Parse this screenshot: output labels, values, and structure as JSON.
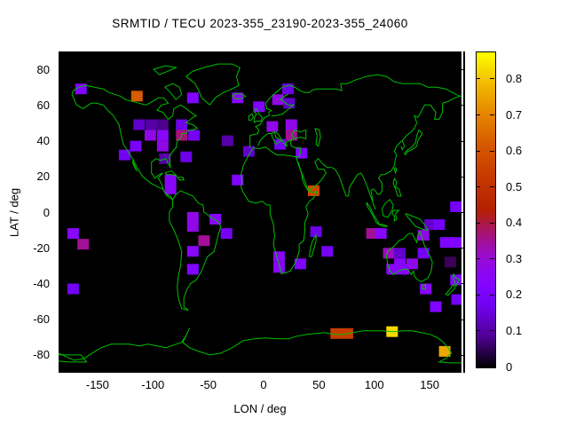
{
  "title": "SRMTID / TECU 2023-355_23190-2023-355_24060",
  "colors": {
    "background": "#ffffff",
    "map_background": "#000000",
    "coastline": "#00c000",
    "text": "#000000"
  },
  "axes": {
    "x_label": "LON / deg",
    "y_label": "LAT / deg",
    "x_tick_labels": [
      "-150",
      "-100",
      "-50",
      "0",
      "50",
      "100",
      "150"
    ],
    "x_tick_values": [
      -150,
      -100,
      -50,
      0,
      50,
      100,
      150
    ],
    "y_tick_labels": [
      "80",
      "60",
      "40",
      "20",
      "0",
      "-20",
      "-40",
      "-60",
      "-80"
    ],
    "y_tick_values": [
      80,
      60,
      40,
      20,
      0,
      -20,
      -40,
      -60,
      -80
    ],
    "x_range": [
      -180,
      180
    ],
    "y_range": [
      -90,
      90
    ]
  },
  "colorbar": {
    "tick_labels": [
      "0",
      "0.1",
      "0.2",
      "0.3",
      "0.4",
      "0.5",
      "0.6",
      "0.7",
      "0.8"
    ],
    "tick_values": [
      0,
      0.1,
      0.2,
      0.3,
      0.4,
      0.5,
      0.6,
      0.7,
      0.8
    ],
    "range": [
      0,
      0.875
    ],
    "palette": "gnuplot pm3d rgbformulae 7,5,15 (black-violet-magenta-red-orange-yellow)"
  },
  "chart_data": {
    "type": "heatmap",
    "title": "SRMTID / TECU 2023-355_23190-2023-355_24060",
    "xlabel": "LON / deg",
    "ylabel": "LAT / deg",
    "xlim": [
      -180,
      180
    ],
    "ylim": [
      -90,
      90
    ],
    "grid": false,
    "legend_position": "right-colorbar",
    "colorbar_range": [
      0,
      0.875
    ],
    "units": "TECU",
    "cell_size_deg": {
      "lon": 10,
      "lat": 6
    },
    "cells": [
      {
        "lon": -160,
        "lat": 69,
        "value": 0.22
      },
      {
        "lon": -110,
        "lat": 65,
        "value": 0.62
      },
      {
        "lon": -60,
        "lat": 64,
        "value": 0.22
      },
      {
        "lon": -20,
        "lat": 64,
        "value": 0.25
      },
      {
        "lon": -1,
        "lat": 59,
        "value": 0.22
      },
      {
        "lon": 25,
        "lat": 69,
        "value": 0.16
      },
      {
        "lon": 16,
        "lat": 63,
        "value": 0.28
      },
      {
        "lon": 26,
        "lat": 61,
        "value": 0.13
      },
      {
        "lon": -108,
        "lat": 49,
        "value": 0.13
      },
      {
        "lon": -97,
        "lat": 49,
        "value": 0.1
      },
      {
        "lon": -87,
        "lat": 49,
        "value": 0.08
      },
      {
        "lon": -70,
        "lat": 49,
        "value": 0.16
      },
      {
        "lon": -98,
        "lat": 43,
        "value": 0.28
      },
      {
        "lon": -87,
        "lat": 43,
        "value": 0.25
      },
      {
        "lon": -70,
        "lat": 43,
        "value": 0.37
      },
      {
        "lon": -59,
        "lat": 43,
        "value": 0.18
      },
      {
        "lon": -111,
        "lat": 37,
        "value": 0.2
      },
      {
        "lon": -87,
        "lat": 37,
        "value": 0.28
      },
      {
        "lon": -121,
        "lat": 32,
        "value": 0.18
      },
      {
        "lon": -85,
        "lat": 30,
        "value": 0.1
      },
      {
        "lon": -66,
        "lat": 31,
        "value": 0.16
      },
      {
        "lon": 11,
        "lat": 48,
        "value": 0.28
      },
      {
        "lon": 28,
        "lat": 49,
        "value": 0.28
      },
      {
        "lon": 28,
        "lat": 43,
        "value": 0.35
      },
      {
        "lon": 18,
        "lat": 38,
        "value": 0.18
      },
      {
        "lon": 37,
        "lat": 33,
        "value": 0.22
      },
      {
        "lon": -29,
        "lat": 40,
        "value": 0.1
      },
      {
        "lon": -10,
        "lat": 34,
        "value": 0.13
      },
      {
        "lon": -20,
        "lat": 18,
        "value": 0.22
      },
      {
        "lon": 48,
        "lat": 12,
        "value": 0.57
      },
      {
        "lon": -80,
        "lat": 18,
        "value": 0.25
      },
      {
        "lon": -80,
        "lat": 13,
        "value": 0.25
      },
      {
        "lon": -167,
        "lat": -12,
        "value": 0.25
      },
      {
        "lon": -158,
        "lat": -18,
        "value": 0.35
      },
      {
        "lon": -167,
        "lat": -43,
        "value": 0.18
      },
      {
        "lon": -60,
        "lat": -3,
        "value": 0.28
      },
      {
        "lon": -60,
        "lat": -8,
        "value": 0.28
      },
      {
        "lon": -40,
        "lat": -4,
        "value": 0.25
      },
      {
        "lon": -30,
        "lat": -12,
        "value": 0.18
      },
      {
        "lon": -50,
        "lat": -16,
        "value": 0.35
      },
      {
        "lon": -60,
        "lat": -22,
        "value": 0.25
      },
      {
        "lon": -60,
        "lat": -32,
        "value": 0.22
      },
      {
        "lon": 50,
        "lat": -11,
        "value": 0.16
      },
      {
        "lon": 60,
        "lat": -22,
        "value": 0.18
      },
      {
        "lon": 17,
        "lat": -25,
        "value": 0.25
      },
      {
        "lon": 17,
        "lat": -31,
        "value": 0.25
      },
      {
        "lon": 36,
        "lat": -29,
        "value": 0.22
      },
      {
        "lon": 100,
        "lat": -12,
        "value": 0.35
      },
      {
        "lon": 108,
        "lat": -12,
        "value": 0.25
      },
      {
        "lon": 146,
        "lat": -13,
        "value": 0.28
      },
      {
        "lon": 152,
        "lat": -7,
        "value": 0.13
      },
      {
        "lon": 160,
        "lat": -7,
        "value": 0.18
      },
      {
        "lon": 175,
        "lat": 3,
        "value": 0.18
      },
      {
        "lon": 166,
        "lat": -17,
        "value": 0.22
      },
      {
        "lon": 176,
        "lat": -17,
        "value": 0.22
      },
      {
        "lon": 115,
        "lat": -23,
        "value": 0.32
      },
      {
        "lon": 125,
        "lat": -23,
        "value": 0.13
      },
      {
        "lon": 125,
        "lat": -29,
        "value": 0.25
      },
      {
        "lon": 136,
        "lat": -29,
        "value": 0.28
      },
      {
        "lon": 146,
        "lat": -23,
        "value": 0.18
      },
      {
        "lon": 170,
        "lat": -28,
        "value": 0.05
      },
      {
        "lon": 118,
        "lat": -32,
        "value": 0.25
      },
      {
        "lon": 128,
        "lat": -32,
        "value": 0.25
      },
      {
        "lon": 148,
        "lat": -43,
        "value": 0.25
      },
      {
        "lon": 175,
        "lat": -38,
        "value": 0.22
      },
      {
        "lon": 176,
        "lat": -49,
        "value": 0.18
      },
      {
        "lon": 157,
        "lat": -53,
        "value": 0.22
      },
      {
        "lon": 68,
        "lat": -68,
        "value": 0.54
      },
      {
        "lon": 78,
        "lat": -68,
        "value": 0.54
      },
      {
        "lon": 118,
        "lat": -67,
        "value": 0.83
      },
      {
        "lon": 165,
        "lat": -78,
        "value": 0.76
      }
    ]
  }
}
